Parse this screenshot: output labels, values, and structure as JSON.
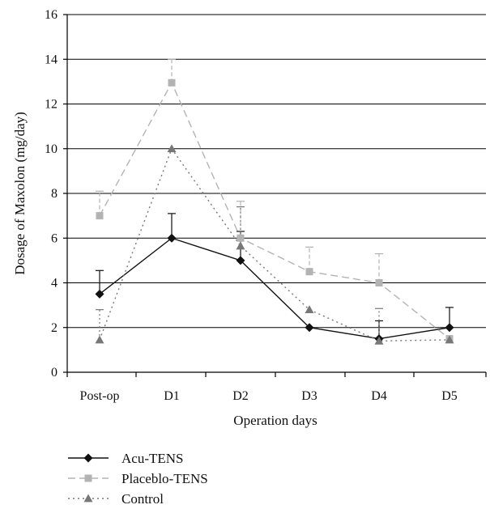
{
  "chart_data": {
    "type": "line",
    "title": "",
    "xlabel": "Operation days",
    "ylabel": "Dosage of Maxolon (mg/day)",
    "categories": [
      "Post-op",
      "D1",
      "D2",
      "D3",
      "D4",
      "D5"
    ],
    "ylim": [
      0,
      16
    ],
    "yticks": [
      0,
      2,
      4,
      6,
      8,
      10,
      12,
      14,
      16
    ],
    "grid": true,
    "legend_position": "bottom-left",
    "series": [
      {
        "name": "Acu-TENS",
        "values": [
          3.5,
          6.0,
          5.0,
          2.0,
          1.5,
          2.0
        ],
        "error_upper": [
          4.55,
          7.1,
          6.3,
          2.0,
          2.3,
          2.9
        ],
        "color": "#111111",
        "line_style": "solid",
        "marker": "diamond"
      },
      {
        "name": "Placeblo-TENS",
        "values": [
          7.0,
          12.95,
          6.0,
          4.5,
          4.0,
          1.5
        ],
        "error_upper": [
          8.1,
          14.0,
          7.65,
          5.6,
          5.3,
          1.5
        ],
        "color": "#b3b3b3",
        "line_style": "dashed",
        "marker": "square"
      },
      {
        "name": "Control",
        "values": [
          1.45,
          10.0,
          5.65,
          2.8,
          1.4,
          1.45
        ],
        "error_upper": [
          2.8,
          10.0,
          7.4,
          2.8,
          2.85,
          1.45
        ],
        "color": "#777777",
        "line_style": "dotted",
        "marker": "triangle"
      }
    ]
  }
}
